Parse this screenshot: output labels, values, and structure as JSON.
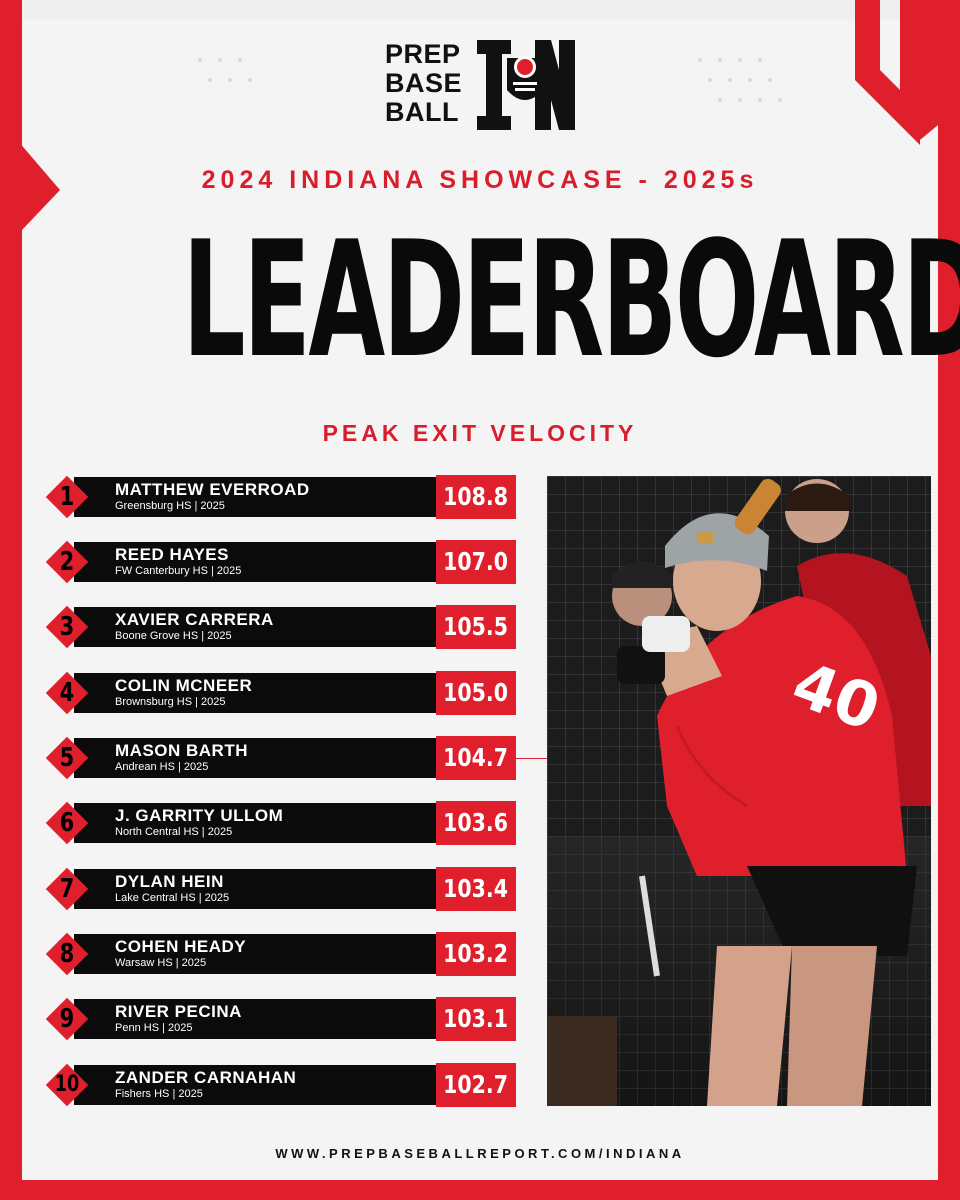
{
  "brand": {
    "logo_lines": [
      "PREP",
      "BASE",
      "BALL"
    ],
    "state_mark": "IN",
    "colors": {
      "red": "#e01f2d",
      "black": "#0b0b0b",
      "background": "#eeeeee"
    }
  },
  "header": {
    "subtitle": "2024 INDIANA SHOWCASE - 2025s",
    "title": "LEADERBOARD",
    "metric": "PEAK EXIT VELOCITY"
  },
  "leaders": [
    {
      "rank": "1",
      "name": "MATTHEW EVERROAD",
      "info": "Greensburg HS | 2025",
      "value": "108.8"
    },
    {
      "rank": "2",
      "name": "REED HAYES",
      "info": "FW Canterbury HS | 2025",
      "value": "107.0"
    },
    {
      "rank": "3",
      "name": "XAVIER CARRERA",
      "info": "Boone Grove HS | 2025",
      "value": "105.5"
    },
    {
      "rank": "4",
      "name": "COLIN MCNEER",
      "info": "Brownsburg HS | 2025",
      "value": "105.0"
    },
    {
      "rank": "5",
      "name": "MASON BARTH",
      "info": "Andrean HS | 2025",
      "value": "104.7"
    },
    {
      "rank": "6",
      "name": "J. GARRITY ULLOM",
      "info": "North Central HS | 2025",
      "value": "103.6"
    },
    {
      "rank": "7",
      "name": "DYLAN HEIN",
      "info": "Lake Central HS | 2025",
      "value": "103.4"
    },
    {
      "rank": "8",
      "name": "COHEN HEADY",
      "info": "Warsaw HS | 2025",
      "value": "103.2"
    },
    {
      "rank": "9",
      "name": "RIVER PECINA",
      "info": "Penn HS | 2025",
      "value": "103.1"
    },
    {
      "rank": "10",
      "name": "ZANDER CARNAHAN",
      "info": "Fishers HS | 2025",
      "value": "102.7"
    }
  ],
  "photo": {
    "jersey_number": "40",
    "subject": "batter-in-cage"
  },
  "footer": {
    "url": "WWW.PREPBASEBALLREPORT.COM/INDIANA"
  }
}
